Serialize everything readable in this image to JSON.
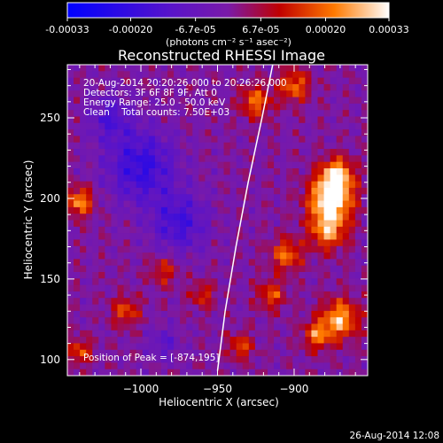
{
  "colorbar": {
    "tick_labels": [
      "-0.00033",
      "-0.00020",
      "-6.7e-05",
      "6.7e-05",
      "0.00020",
      "0.00033"
    ],
    "tick_values": [
      -0.00033,
      -0.0002,
      -6.7e-05,
      6.7e-05,
      0.0002,
      0.00033
    ],
    "range": [
      -0.00033,
      0.00033
    ],
    "units": "(photons cm⁻² s⁻¹ asec⁻²)"
  },
  "chart_data": {
    "type": "heatmap",
    "title": "Reconstructed RHESSI Image",
    "xlabel": "Heliocentric X (arcsec)",
    "ylabel": "Heliocentric Y (arcsec)",
    "xlim": [
      -1048,
      -852
    ],
    "ylim": [
      90,
      283
    ],
    "x_ticks": [
      -1000,
      -950,
      -900
    ],
    "x_tick_labels": [
      "−1000",
      "−950",
      "−900"
    ],
    "y_ticks": [
      100,
      150,
      200,
      250
    ],
    "y_tick_labels": [
      "100",
      "150",
      "200",
      "250"
    ],
    "info_lines": [
      "20-Aug-2014 20:20:26.000 to 20:26:26.000",
      "Detectors: 3F 6F 8F 9F, Att 0",
      "Energy Range: 25.0 - 50.0 keV",
      "Clean    Total counts: 7.50E+03"
    ],
    "peak_label": "Position of Peak = [-874,195]",
    "peak_position": [
      -874,
      195
    ],
    "limb": [
      [
        -950,
        93
      ],
      [
        -945,
        130
      ],
      [
        -938,
        170
      ],
      [
        -930,
        210
      ],
      [
        -921,
        250
      ],
      [
        -914,
        283
      ]
    ]
  },
  "footer": {
    "timestamp": "26-Aug-2014 12:08"
  }
}
